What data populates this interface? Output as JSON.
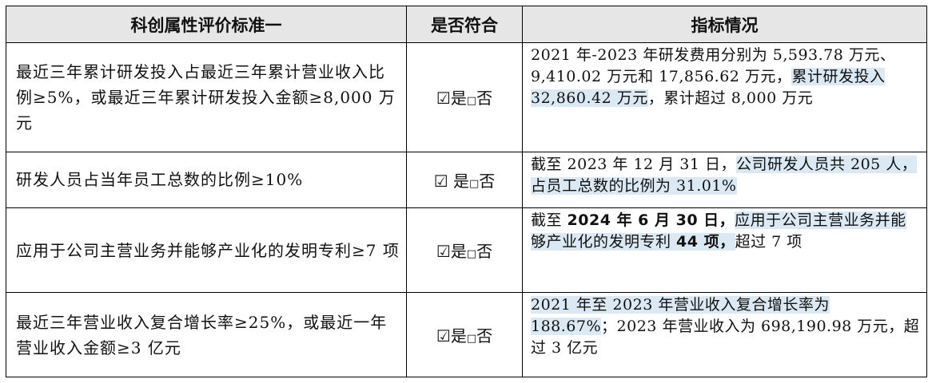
{
  "headers": {
    "criterion": "科创属性评价标准一",
    "compliance": "是否符合",
    "status": "指标情况"
  },
  "rows": [
    {
      "criterion": "最近三年累计研发投入占最近三年累计营业收入比例≥5%，或最近三年累计研发投入金额≥8,000 万元",
      "compliance": {
        "checked": "☑",
        "yes": "是",
        "unchecked": "□",
        "no": "否"
      },
      "status": {
        "p1": "2021 年-2023 年研发费用分别为 5,593.78 万元、9,410.02 万元和 17,856.62 万元，",
        "p2": "累计研发投入 32,860.42 万元",
        "p3": "，累计超过 8,000 万元"
      }
    },
    {
      "criterion": "研发人员占当年员工总数的比例≥10%",
      "compliance": {
        "checked": "☑",
        "yes": " 是",
        "unchecked": "□",
        "no": "否"
      },
      "status": {
        "p1": "截至 2023 年 12 月 31 日，",
        "p2": "公司研发人员共 205 人，占员工总数的比例为 31.01%"
      }
    },
    {
      "criterion": "应用于公司主营业务并能够产业化的发明专利≥7 项",
      "compliance": {
        "checked": "☑",
        "yes": "是",
        "unchecked": "□",
        "no": "否"
      },
      "status": {
        "p1": "截至 ",
        "p2": "2024 年 6 月 30 日，",
        "p3": "应用于公司主营业务并能够产业化的发明专利 ",
        "p4": "44 项，",
        "p5": "超过 7 项"
      }
    },
    {
      "criterion": "最近三年营业收入复合增长率≥25%，或最近一年营业收入金额≥3 亿元",
      "compliance": {
        "checked": "☑",
        "yes": "是",
        "unchecked": "□",
        "no": "否"
      },
      "status": {
        "p1": "2021 年至 2023 年营业收入复合增长率为 188.67%",
        "p2": "；2023 年营业收入为 698,190.98 万元，超过 3 亿元"
      }
    }
  ],
  "colors": {
    "header_bg": "#e7e6e6",
    "highlight": "#dbe9f4",
    "border": "#000000"
  }
}
